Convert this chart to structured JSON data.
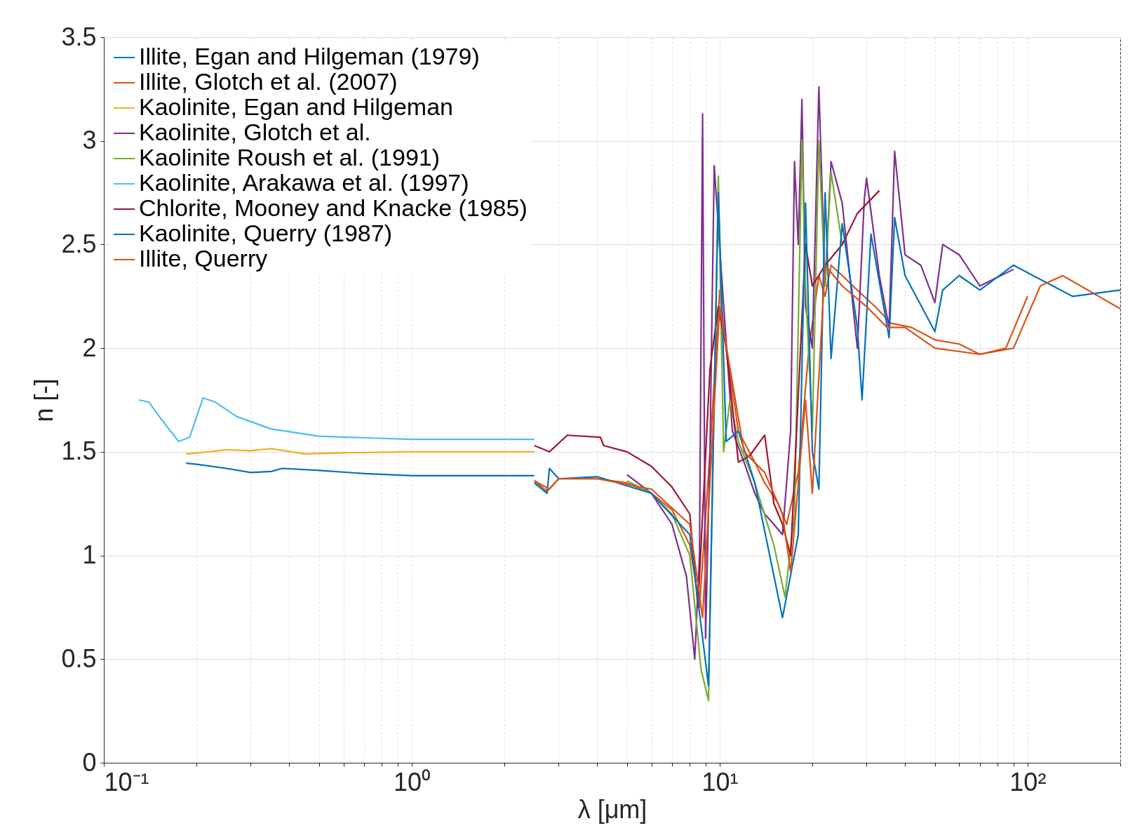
{
  "chart_data": {
    "type": "line",
    "xlabel": "λ [μm]",
    "ylabel": "n [-]",
    "log": "x",
    "grid": true,
    "legend": "top left",
    "line_style": "solid",
    "marker": "none",
    "xlim": [
      0.1,
      200
    ],
    "ylim": [
      0,
      3.5
    ],
    "xticks": [
      {
        "value": 0.1,
        "label": "10⁻¹"
      },
      {
        "value": 0.2,
        "label": null
      },
      {
        "value": 0.3,
        "label": null
      },
      {
        "value": 0.4,
        "label": null
      },
      {
        "value": 0.5,
        "label": null
      },
      {
        "value": 0.6,
        "label": null
      },
      {
        "value": 0.7,
        "label": null
      },
      {
        "value": 0.8,
        "label": null
      },
      {
        "value": 0.9,
        "label": null
      },
      {
        "value": 1,
        "label": "10⁰"
      },
      {
        "value": 2,
        "label": null
      },
      {
        "value": 3,
        "label": null
      },
      {
        "value": 4,
        "label": null
      },
      {
        "value": 5,
        "label": null
      },
      {
        "value": 6,
        "label": null
      },
      {
        "value": 7,
        "label": null
      },
      {
        "value": 8,
        "label": null
      },
      {
        "value": 9,
        "label": null
      },
      {
        "value": 10,
        "label": "10¹"
      },
      {
        "value": 20,
        "label": null
      },
      {
        "value": 30,
        "label": null
      },
      {
        "value": 40,
        "label": null
      },
      {
        "value": 50,
        "label": null
      },
      {
        "value": 60,
        "label": null
      },
      {
        "value": 70,
        "label": null
      },
      {
        "value": 80,
        "label": null
      },
      {
        "value": 90,
        "label": null
      },
      {
        "value": 100,
        "label": "10²"
      },
      {
        "value": 200,
        "label": null
      }
    ],
    "yticks": [
      0,
      0.5,
      1,
      1.5,
      2,
      2.5,
      3,
      3.5
    ],
    "series": [
      {
        "name": "Illite, Egan and Hilgeman (1979)",
        "color": "#0072bd",
        "x": [
          0.185,
          0.2,
          0.25,
          0.3,
          0.35,
          0.38,
          0.5,
          0.7,
          1.0,
          2.5
        ],
        "values": [
          1.445,
          1.44,
          1.42,
          1.4,
          1.405,
          1.42,
          1.41,
          1.395,
          1.385,
          1.385
        ]
      },
      {
        "name": "Illite, Glotch et al. (2007)",
        "color": "#d95319",
        "x": [
          2.5,
          2.75,
          3,
          4,
          5,
          6,
          7,
          8,
          8.6,
          9.3,
          10,
          10.5,
          11.5,
          13,
          14,
          15.5,
          16.5,
          18,
          19.5,
          21,
          22,
          23,
          25,
          28,
          32,
          36,
          42,
          50,
          60,
          70,
          85,
          100
        ],
        "values": [
          1.36,
          1.31,
          1.37,
          1.37,
          1.35,
          1.3,
          1.22,
          1.05,
          0.75,
          1.5,
          2.28,
          2.0,
          1.6,
          1.45,
          1.35,
          1.25,
          1.15,
          1.4,
          2.0,
          2.35,
          2.25,
          2.4,
          2.35,
          2.28,
          2.2,
          2.12,
          2.1,
          2.04,
          2.02,
          1.97,
          2.0,
          2.25
        ]
      },
      {
        "name": "Kaolinite, Egan and Hilgeman",
        "color": "#edb120",
        "x": [
          0.185,
          0.22,
          0.25,
          0.3,
          0.35,
          0.45,
          0.6,
          1.0,
          2.5
        ],
        "values": [
          1.49,
          1.5,
          1.51,
          1.505,
          1.515,
          1.49,
          1.495,
          1.5,
          1.5
        ]
      },
      {
        "name": "Kaolinite, Glotch et al.",
        "color": "#7e2f8e",
        "x": [
          5,
          6,
          7,
          7.8,
          8.3,
          8.6,
          8.8,
          9.0,
          9.3,
          9.6,
          10.2,
          11,
          12,
          13,
          14,
          15,
          16,
          17,
          17.5,
          18,
          18.5,
          19,
          20,
          21,
          22,
          23,
          25,
          28,
          29.5,
          30,
          33,
          35.5,
          37,
          40,
          45,
          50,
          53,
          60,
          70,
          90
        ],
        "values": [
          1.39,
          1.3,
          1.15,
          0.9,
          0.5,
          1.0,
          3.13,
          0.6,
          1.5,
          2.88,
          2.3,
          1.6,
          1.45,
          1.3,
          1.2,
          1.15,
          1.1,
          1.6,
          2.9,
          2.5,
          3.2,
          2.2,
          2.0,
          3.26,
          2.3,
          2.9,
          2.7,
          2.0,
          2.72,
          2.82,
          2.35,
          2.1,
          2.95,
          2.45,
          2.4,
          2.22,
          2.5,
          2.45,
          2.3,
          2.38
        ]
      },
      {
        "name": "Kaolinite Roush et al. (1991)",
        "color": "#77ac30",
        "x": [
          5,
          6,
          7,
          8,
          8.7,
          9.2,
          9.9,
          10.3,
          10.8,
          11.5,
          13,
          15,
          16.3,
          17.5,
          18.5,
          19,
          20,
          21,
          22,
          23,
          25
        ],
        "values": [
          1.36,
          1.3,
          1.2,
          1.0,
          0.45,
          0.3,
          2.83,
          1.5,
          1.75,
          1.55,
          1.35,
          1.05,
          0.8,
          1.2,
          3.0,
          2.3,
          1.6,
          3.0,
          2.3,
          2.85,
          2.5
        ]
      },
      {
        "name": "Kaolinite, Arakawa et al. (1997)",
        "color": "#4dbeee",
        "x": [
          0.13,
          0.14,
          0.155,
          0.175,
          0.19,
          0.21,
          0.23,
          0.27,
          0.35,
          0.5,
          1.0,
          2.5
        ],
        "values": [
          1.75,
          1.74,
          1.65,
          1.55,
          1.57,
          1.76,
          1.74,
          1.67,
          1.61,
          1.575,
          1.56,
          1.56
        ]
      },
      {
        "name": "Chlorite, Mooney and Knacke (1985)",
        "color": "#a2142f",
        "x": [
          2.5,
          2.8,
          3.2,
          4.1,
          4.2,
          5,
          6,
          7,
          8,
          8.5,
          9.3,
          9.9,
          10.5,
          11.5,
          12.5,
          14,
          15,
          16,
          17,
          19,
          20,
          22,
          25,
          28,
          33
        ],
        "values": [
          1.53,
          1.5,
          1.58,
          1.57,
          1.53,
          1.5,
          1.43,
          1.33,
          1.2,
          0.75,
          1.9,
          2.2,
          2.0,
          1.45,
          1.48,
          1.58,
          1.25,
          1.15,
          1.0,
          2.5,
          2.3,
          2.4,
          2.5,
          2.65,
          2.76
        ]
      },
      {
        "name": "Kaolinite, Querry (1987)",
        "color": "#0072bd",
        "x": [
          2.5,
          2.75,
          2.8,
          3,
          4,
          6,
          8,
          9.2,
          9.9,
          10.5,
          11.5,
          13,
          16,
          18,
          19,
          20,
          21,
          22,
          23,
          25,
          28,
          29,
          31,
          35.5,
          37,
          40,
          50,
          53,
          60,
          70,
          90,
          140,
          200
        ],
        "values": [
          1.35,
          1.3,
          1.42,
          1.37,
          1.38,
          1.3,
          1.1,
          0.37,
          2.75,
          1.55,
          1.6,
          1.35,
          0.7,
          1.1,
          2.7,
          1.5,
          1.32,
          2.75,
          1.95,
          2.6,
          2.1,
          1.75,
          2.55,
          2.05,
          2.63,
          2.35,
          2.08,
          2.28,
          2.35,
          2.28,
          2.4,
          2.25,
          2.28
        ]
      },
      {
        "name": "Illite, Querry",
        "color": "#d95319",
        "x": [
          2.5,
          2.8,
          3,
          4,
          6,
          8,
          8.8,
          10,
          12,
          14,
          16,
          17,
          19,
          20,
          22,
          25,
          30,
          35,
          40,
          50,
          70,
          90,
          110,
          130,
          200
        ],
        "values": [
          1.36,
          1.32,
          1.37,
          1.37,
          1.32,
          1.15,
          0.7,
          2.2,
          1.5,
          1.4,
          1.2,
          0.92,
          1.75,
          1.3,
          2.4,
          2.3,
          2.2,
          2.1,
          2.1,
          2.0,
          1.97,
          2.0,
          2.3,
          2.35,
          2.19
        ]
      }
    ]
  }
}
